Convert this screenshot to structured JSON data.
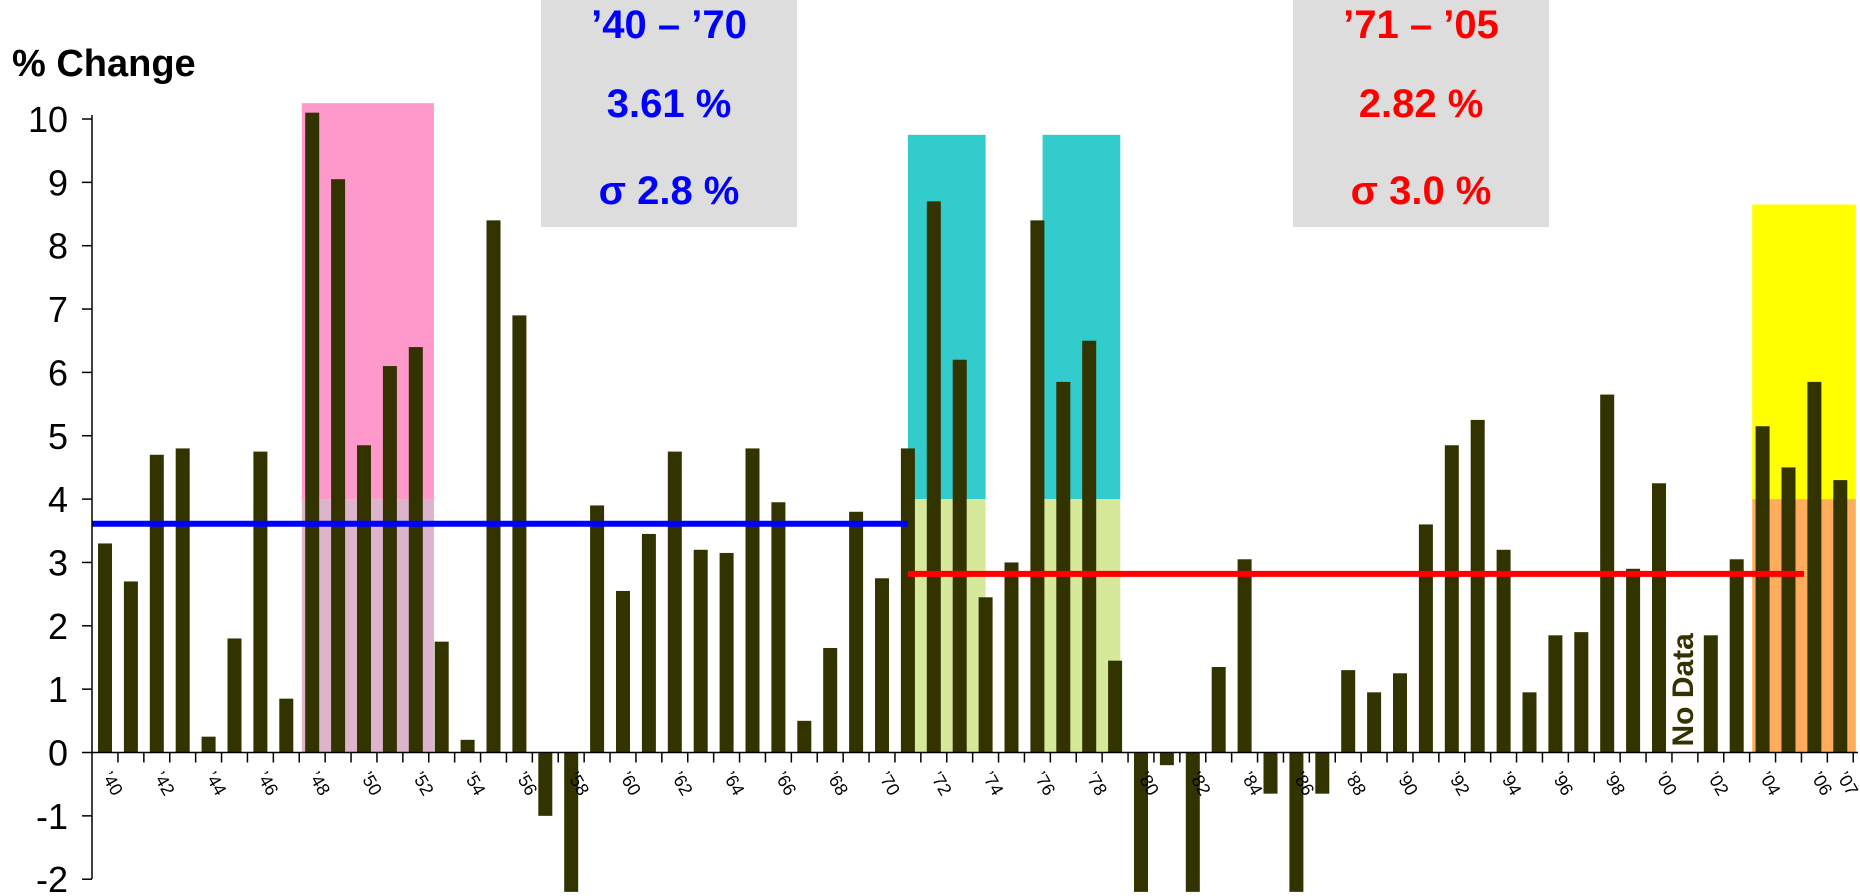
{
  "chart_data": {
    "type": "bar",
    "ylabel": "% Change",
    "ylim": [
      -2,
      10
    ],
    "yticks": [
      -2,
      -1,
      0,
      1,
      2,
      3,
      4,
      5,
      6,
      7,
      8,
      9,
      10
    ],
    "x_start_year": 1940,
    "x_end_year": 2007,
    "xtick_labels": [
      "’40",
      "’42",
      "’44",
      "’46",
      "’48",
      "’50",
      "’52",
      "’54",
      "’56",
      "’58",
      "’60",
      "’62",
      "’64",
      "’66",
      "’68",
      "’70",
      "’72",
      "’74",
      "’76",
      "’78",
      "’80",
      "’82",
      "’84",
      "’86",
      "’88",
      "’90",
      "’92",
      "’94",
      "’96",
      "’98",
      "’00",
      "’02",
      "’04",
      "’06",
      "’07"
    ],
    "xtick_years": [
      1940,
      1942,
      1944,
      1946,
      1948,
      1950,
      1952,
      1954,
      1956,
      1958,
      1960,
      1962,
      1964,
      1966,
      1968,
      1970,
      1972,
      1974,
      1976,
      1978,
      1980,
      1982,
      1984,
      1986,
      1988,
      1990,
      1992,
      1994,
      1996,
      1998,
      2000,
      2002,
      2004,
      2006,
      2007
    ],
    "bar_color": "#333300",
    "values": [
      3.3,
      2.7,
      4.7,
      4.8,
      0.25,
      1.8,
      4.75,
      0.85,
      10.1,
      9.05,
      4.85,
      6.1,
      6.4,
      1.75,
      0.2,
      8.4,
      6.9,
      -1.0,
      -2.2,
      3.9,
      2.55,
      3.45,
      4.75,
      3.2,
      3.15,
      4.8,
      3.95,
      0.5,
      1.65,
      3.8,
      2.75,
      4.8,
      8.7,
      6.2,
      2.45,
      3.0,
      8.4,
      5.85,
      6.5,
      1.45,
      -2.2,
      -0.2,
      -2.2,
      1.35,
      3.05,
      -0.65,
      -2.2,
      -0.65,
      1.3,
      0.95,
      1.25,
      3.6,
      4.85,
      5.25,
      3.2,
      0.95,
      1.85,
      1.9,
      5.65,
      2.9,
      4.25,
      null,
      1.85,
      3.05,
      5.15,
      4.5,
      5.85,
      4.3
    ],
    "shaded_regions": [
      {
        "from": 1947.6,
        "to": 1952.7,
        "top": 10.25,
        "color": "#ff99cc",
        "lower_color": "#dcb4cc",
        "split": 4
      },
      {
        "from": 1971.0,
        "to": 1974.0,
        "top": 9.75,
        "color": "#33cccc",
        "lower_color": "#d6e89a",
        "split": 4
      },
      {
        "from": 1976.2,
        "to": 1979.2,
        "top": 9.75,
        "color": "#33cccc",
        "lower_color": "#d6e89a",
        "split": 4
      },
      {
        "from": 2003.6,
        "to": 2007.6,
        "top": 8.65,
        "color": "#ffff00",
        "lower_color": "#ffad5c",
        "split": 4
      }
    ],
    "averages": [
      {
        "from": 1940,
        "to": 1971,
        "value": 3.61,
        "color": "#0000ff"
      },
      {
        "from": 1971,
        "to": 2005.6,
        "value": 2.82,
        "color": "#ff0000"
      }
    ],
    "annotations": {
      "no_data": "No Data",
      "no_data_year": 2001
    }
  },
  "stat_boxes": [
    {
      "period": "’40 – ’70",
      "mean": "3.61 %",
      "sigma": "σ 2.8 %",
      "color": "#0000ff"
    },
    {
      "period": "’71 – ’05",
      "mean": "2.82 %",
      "sigma": "σ 3.0 %",
      "color": "#ff0000"
    }
  ]
}
